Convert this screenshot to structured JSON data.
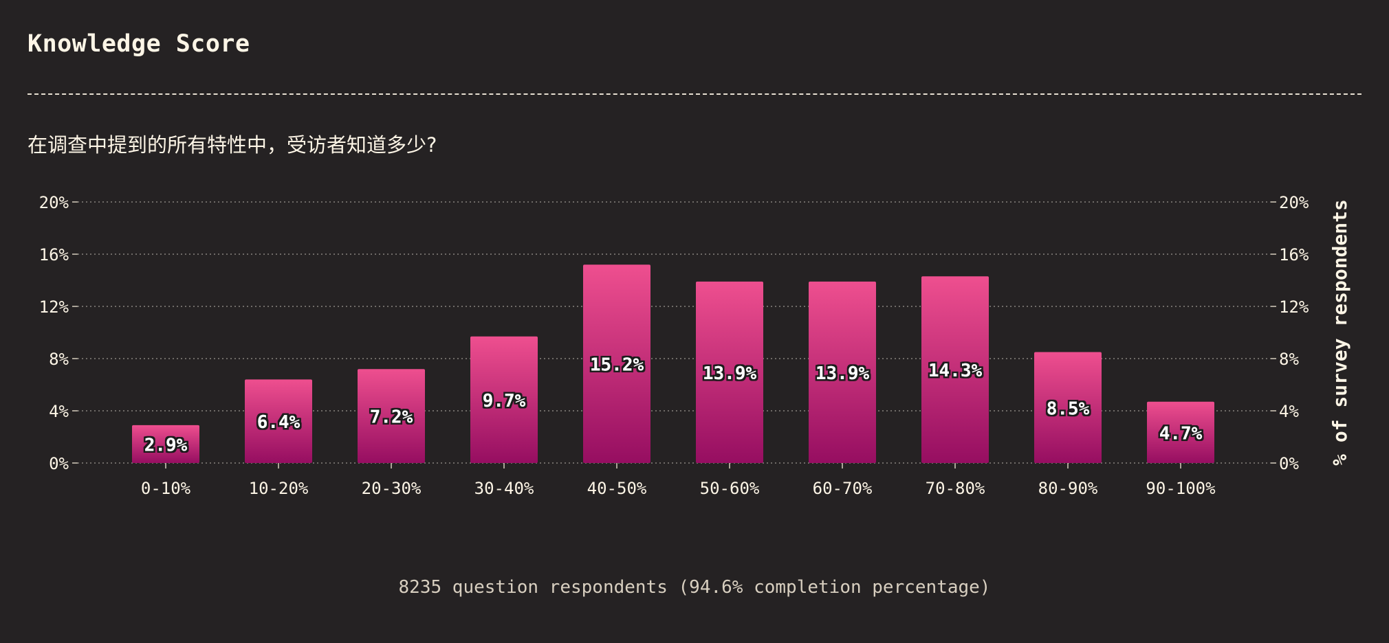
{
  "title": "Knowledge Score",
  "subtitle": "在调查中提到的所有特性中，受访者知道多少?",
  "footnote": "8235 question respondents (94.6% completion percentage)",
  "colors": {
    "background": "#252223",
    "text": "#fdf5e6",
    "bar_top": "#ee4f8f",
    "bar_bottom": "#960e61",
    "grid": "#8a8480"
  },
  "chart_data": {
    "type": "bar",
    "categories": [
      "0-10%",
      "10-20%",
      "20-30%",
      "30-40%",
      "40-50%",
      "50-60%",
      "60-70%",
      "70-80%",
      "80-90%",
      "90-100%"
    ],
    "values": [
      2.9,
      6.4,
      7.2,
      9.7,
      15.2,
      13.9,
      13.9,
      14.3,
      8.5,
      4.7
    ],
    "data_labels": [
      "2.9%",
      "6.4%",
      "7.2%",
      "9.7%",
      "15.2%",
      "13.9%",
      "13.9%",
      "14.3%",
      "8.5%",
      "4.7%"
    ],
    "ylim": [
      0,
      20
    ],
    "yticks": [
      0,
      4,
      8,
      12,
      16,
      20
    ],
    "ytick_labels": [
      "0%",
      "4%",
      "8%",
      "12%",
      "16%",
      "20%"
    ],
    "ylabel_right": "% of survey respondents",
    "grid": true
  }
}
